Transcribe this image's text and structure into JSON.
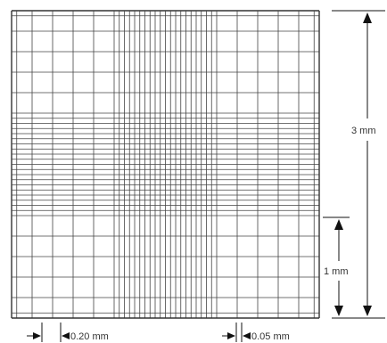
{
  "figure": {
    "labels": {
      "height_total": "3 mm",
      "height_sub": "1 mm",
      "spacing_large": "0.20 mm",
      "spacing_small": "0.05 mm"
    },
    "grid": {
      "size_mm": 3,
      "major_spacing_mm": 0.2,
      "minor_spacing_mm": 0.05,
      "minor_band_mm": [
        1,
        2
      ],
      "outer_border_gap_mm": 0.05
    },
    "colors": {
      "line": "#444444",
      "border": "#333333",
      "arrow": "#111111",
      "text": "#333333"
    }
  }
}
